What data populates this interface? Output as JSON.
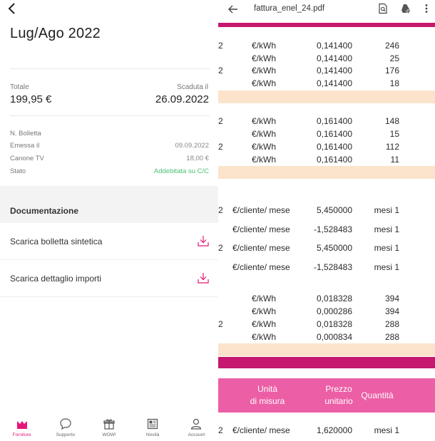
{
  "left": {
    "title": "Lug/Ago 2022",
    "totale_label": "Totale",
    "totale_value": "199,95 €",
    "scadenza_label": "Scaduta il",
    "scadenza_value": "26.09.2022",
    "meta": [
      {
        "label": "N. Bolletta",
        "value": ""
      },
      {
        "label": "Emessa il",
        "value": "09.09.2022"
      },
      {
        "label": "Canone TV",
        "value": "18,00 €"
      },
      {
        "label": "Stato",
        "value": "Addebitata su C/C"
      }
    ],
    "doc_section_title": "Documentazione",
    "doc_items": [
      {
        "label": "Scarica bolletta sintetica"
      },
      {
        "label": "Scarica dettaglio importi"
      }
    ],
    "nav": [
      {
        "label": "Forniture",
        "icon": "home-icon",
        "active": true
      },
      {
        "label": "Supporto",
        "icon": "chat-icon",
        "active": false
      },
      {
        "label": "WOW!",
        "icon": "gift-icon",
        "active": false
      },
      {
        "label": "Novità",
        "icon": "news-icon",
        "active": false
      },
      {
        "label": "Account",
        "icon": "user-icon",
        "active": false
      }
    ],
    "colors": {
      "accent": "#e6157a",
      "status_green": "#4bbf73"
    }
  },
  "pdf": {
    "filename": "fattura_enel_24.pdf",
    "toolbar_icons": [
      "search-in-doc-icon",
      "drive-add-icon",
      "more-vert-icon"
    ],
    "groups": [
      {
        "rows": [
          {
            "lead": "2",
            "unit": "€/kWh",
            "price": "0,141400",
            "qty": "246"
          },
          {
            "lead": "",
            "unit": "€/kWh",
            "price": "0,141400",
            "qty": "25"
          },
          {
            "lead": "2",
            "unit": "€/kWh",
            "price": "0,141400",
            "qty": "176"
          },
          {
            "lead": "",
            "unit": "€/kWh",
            "price": "0,141400",
            "qty": "18"
          }
        ]
      },
      {
        "rows": [
          {
            "lead": "2",
            "unit": "€/kWh",
            "price": "0,161400",
            "qty": "148"
          },
          {
            "lead": "",
            "unit": "€/kWh",
            "price": "0,161400",
            "qty": "15"
          },
          {
            "lead": "2",
            "unit": "€/kWh",
            "price": "0,161400",
            "qty": "112"
          },
          {
            "lead": "",
            "unit": "€/kWh",
            "price": "0,161400",
            "qty": "11"
          }
        ]
      },
      {
        "rows": [
          {
            "lead": "2",
            "unit": "€/cliente/ mese",
            "price": "5,450000",
            "qty": "mesi 1"
          },
          {
            "lead": "",
            "unit": "€/cliente/ mese",
            "price": "-1,528483",
            "qty": "mesi 1"
          },
          {
            "lead": "2",
            "unit": "€/cliente/ mese",
            "price": "5,450000",
            "qty": "mesi 1"
          },
          {
            "lead": "",
            "unit": "€/cliente/ mese",
            "price": "-1,528483",
            "qty": "mesi 1"
          }
        ]
      },
      {
        "rows": [
          {
            "lead": "",
            "unit": "€/kWh",
            "price": "0,018328",
            "qty": "394"
          },
          {
            "lead": "",
            "unit": "€/kWh",
            "price": "0,000286",
            "qty": "394"
          },
          {
            "lead": "2",
            "unit": "€/kWh",
            "price": "0,018328",
            "qty": "288"
          },
          {
            "lead": "",
            "unit": "€/kWh",
            "price": "0,000834",
            "qty": "288"
          }
        ]
      }
    ],
    "header": {
      "unit_line1": "Unità",
      "unit_line2": "di misura",
      "price_line1": "Prezzo",
      "price_line2": "unitario",
      "qty": "Quantità"
    },
    "last_row": {
      "lead": "2",
      "unit": "€/cliente/ mese",
      "price": "1,620000",
      "qty": "mesi 1"
    },
    "colors": {
      "magenta": "#c5186e",
      "peach": "#fbe3cc",
      "pink_header": "#ec5ea6"
    }
  }
}
